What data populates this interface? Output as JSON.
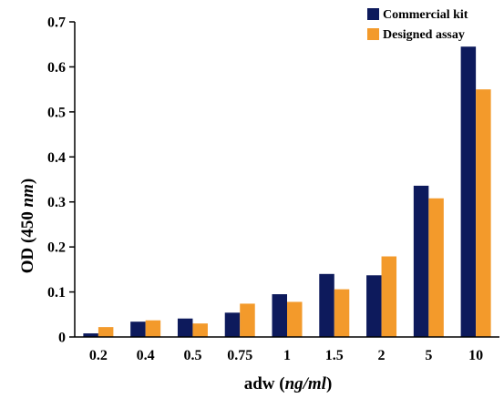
{
  "chart_data": {
    "type": "bar",
    "ylabel": "OD (450 nm)",
    "ylabel_parts": [
      "OD (450 ",
      "nm",
      ")"
    ],
    "xlabel": "adw (ng/ml)",
    "xlabel_parts": [
      "adw (",
      "ng/ml",
      ")"
    ],
    "categories": [
      "0.2",
      "0.4",
      "0.5",
      "0.75",
      "1",
      "1.5",
      "2",
      "5",
      "10"
    ],
    "series": [
      {
        "name": "Commercial kit",
        "color": "#0d1a5c",
        "values": [
          0.008,
          0.034,
          0.041,
          0.054,
          0.095,
          0.14,
          0.137,
          0.336,
          0.645
        ]
      },
      {
        "name": "Designed assay",
        "color": "#f39a2b",
        "values": [
          0.022,
          0.037,
          0.03,
          0.074,
          0.078,
          0.106,
          0.179,
          0.308,
          0.55
        ]
      }
    ],
    "ylim": [
      0,
      0.7
    ],
    "yticks": [
      "0",
      "0.1",
      "0.2",
      "0.3",
      "0.4",
      "0.5",
      "0.6",
      "0.7"
    ],
    "grid": false,
    "legend_position": "top-right"
  }
}
